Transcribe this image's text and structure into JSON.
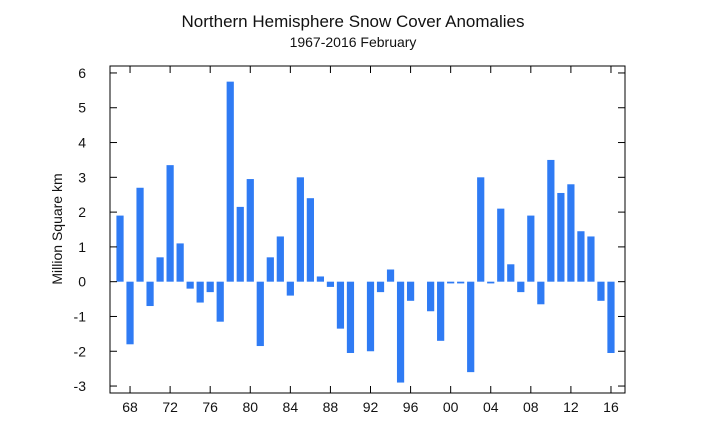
{
  "chart_data": {
    "type": "bar",
    "title": "Northern Hemisphere Snow Cover Anomalies",
    "subtitle": "1967-2016 February",
    "xlabel": "",
    "ylabel": "Million Square km",
    "years": [
      1967,
      1968,
      1969,
      1970,
      1971,
      1972,
      1973,
      1974,
      1975,
      1976,
      1977,
      1978,
      1979,
      1980,
      1981,
      1982,
      1983,
      1984,
      1985,
      1986,
      1987,
      1988,
      1989,
      1990,
      1991,
      1992,
      1993,
      1994,
      1995,
      1996,
      1997,
      1998,
      1999,
      2000,
      2001,
      2002,
      2003,
      2004,
      2005,
      2006,
      2007,
      2008,
      2009,
      2010,
      2011,
      2012,
      2013,
      2014,
      2015,
      2016
    ],
    "values": [
      1.9,
      -1.8,
      2.7,
      -0.7,
      0.7,
      3.35,
      1.1,
      -0.2,
      -0.6,
      -0.3,
      -1.15,
      5.75,
      2.15,
      2.95,
      -1.85,
      0.7,
      1.3,
      -0.4,
      3.0,
      2.4,
      0.15,
      -0.15,
      -1.35,
      -2.05,
      0.0,
      -2.0,
      -0.3,
      0.35,
      -2.9,
      -0.55,
      0.0,
      -0.85,
      -1.7,
      -0.05,
      -0.05,
      -2.6,
      3.0,
      -0.05,
      2.1,
      0.5,
      -0.3,
      1.9,
      -0.65,
      3.5,
      2.55,
      2.8,
      1.45,
      1.3,
      -0.55,
      -2.05
    ],
    "xticks": [
      "68",
      "72",
      "76",
      "80",
      "84",
      "88",
      "92",
      "96",
      "00",
      "04",
      "08",
      "12",
      "16"
    ],
    "xtick_years": [
      1968,
      1972,
      1976,
      1980,
      1984,
      1988,
      1992,
      1996,
      2000,
      2004,
      2008,
      2012,
      2016
    ],
    "yticks": [
      "6",
      "5",
      "4",
      "3",
      "2",
      "1",
      "0",
      "-1",
      "-2",
      "-3"
    ],
    "ytick_values": [
      6,
      5,
      4,
      3,
      2,
      1,
      0,
      -1,
      -2,
      -3
    ],
    "ylim": [
      -3.2,
      6.2
    ],
    "xlim": [
      1966.0,
      2017.4
    ],
    "bar_color": "#2f7bf4",
    "axis_color": "#000000"
  }
}
